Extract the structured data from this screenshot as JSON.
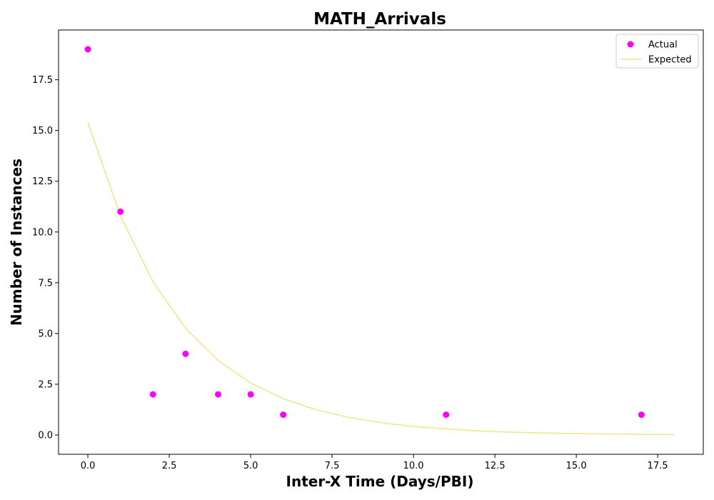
{
  "chart_data": {
    "type": "scatter",
    "title": "MATH_Arrivals",
    "xlabel": "Inter-X Time (Days/PBI)",
    "ylabel": "Number of Instances",
    "xlim": [
      -0.9,
      18.9
    ],
    "ylim": [
      -0.95,
      19.95
    ],
    "x_ticks": [
      0.0,
      2.5,
      5.0,
      7.5,
      10.0,
      12.5,
      15.0,
      17.5
    ],
    "x_tick_labels": [
      "0.0",
      "2.5",
      "5.0",
      "7.5",
      "10.0",
      "12.5",
      "15.0",
      "17.5"
    ],
    "y_ticks": [
      0.0,
      2.5,
      5.0,
      7.5,
      10.0,
      12.5,
      15.0,
      17.5
    ],
    "y_tick_labels": [
      "0.0",
      "2.5",
      "5.0",
      "7.5",
      "10.0",
      "12.5",
      "15.0",
      "17.5"
    ],
    "grid": false,
    "legend_position": "top-right",
    "series": [
      {
        "name": "Actual",
        "kind": "scatter",
        "color": "#ff00ff",
        "x": [
          0,
          1,
          2,
          3,
          4,
          5,
          6,
          11,
          17
        ],
        "y": [
          19,
          11,
          2,
          4,
          2,
          2,
          1,
          1,
          1
        ]
      },
      {
        "name": "Expected",
        "kind": "line",
        "color": "#f0e68c",
        "x": [
          0,
          1,
          2,
          3,
          4,
          5,
          6,
          7,
          8,
          9,
          10,
          11,
          12,
          13,
          14,
          15,
          16,
          17,
          18
        ],
        "y": [
          15.4,
          10.8,
          7.55,
          5.26,
          3.67,
          2.56,
          1.79,
          1.25,
          0.87,
          0.61,
          0.42,
          0.3,
          0.2,
          0.14,
          0.1,
          0.07,
          0.05,
          0.03,
          0.02
        ]
      }
    ]
  }
}
